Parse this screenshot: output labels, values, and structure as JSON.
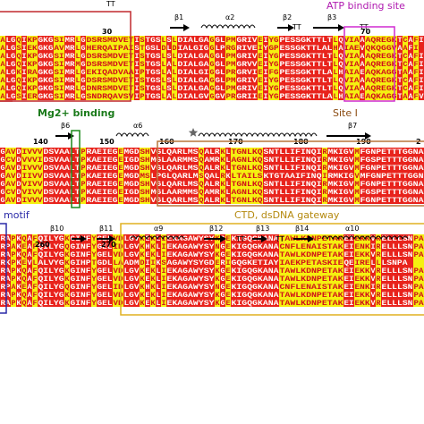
{
  "annotations": {
    "atp": "ATP binding site",
    "mg": "Mg2+ binding",
    "site1": "Site I",
    "motif": "motif",
    "ctd": "CTD, dsDNA gateway"
  },
  "blocks": [
    {
      "structure": [
        "TT",
        "β1",
        "α2",
        "β2",
        "TT",
        "β3",
        "TT"
      ],
      "ruler": [
        "30",
        "70"
      ],
      "conservation": "YRRYRYYRRRYYRRYRYYYYYYYYYRYRRRYRYRRRRRRYRRYYRRRRYRYYRRRRRRRRRRYRYYYRYYYYYYRYRYR",
      "rows": [
        "ALGQIKPGKGSIMRLGDSRSMDVETISTGSLSLDIALGAGGLPMGRIVEIYGPESSGKTTLTLQVIAAAQREGKTCAFI",
        "ALGSIEKGKGAVMRLGHERQAIPAISTGSLDLDIALGIGGLPRGRIVEIYGPESSGKTTLALHAIAEVQKQGGVAAFI",
        "ALGQIKPGKGSIMRLGDSRSMDVETISTGSLSLDIALGAGGLPMGRIVEIYGPESSGKTTLTLQVIAAAQREGKTCAFI",
        "ALGQIKPGKGSIMRMGDSRSMDVETISTGSLALDIALGAGGLPMGRVVEIYGPESSGKTTLTLQVIAAAQREGKTCAFI",
        "ALGKIRAGKGSIMRLGEKIQADVAAIPTGSLALDIALGIGGLPRGRVIEIFGPESSGKTTLALHAIAEAQKAGGTAAFI",
        "ALGQIKPGKGSIMRLGDSRSMDVETISTGSLSLDIALGAGGLPMGRIVEIYGPESSGKTTLTLQVIAAAQREGKTCAFI",
        "ALGQIKPGKGSIMRLGDNRSMDVETISTGSLSLDIALGAGGLPMGRIVEIYGPESSGKTTLTLQVIAAAQREGKTCAFI",
        "ALGSIERGKGSIMRLGSNDRQAVSVIPTGSLALDIALGVGGVPRGRIIEIYGPESSGKTTLALHAIAEAQKAGGTAAFV"
      ]
    },
    {
      "structure": [
        "β6",
        "α6",
        "β7"
      ],
      "ruler": [
        "140",
        "150",
        "160",
        "170",
        "180",
        "190",
        "2"
      ],
      "conservation": "RYYRYYYYRRRRRRRYRRRRRRYRRRYYRRRRRRRRRYRRRYRYYYYYYRRRRRRRRRRRYRRRRRYRRRRRRRRRRRR",
      "rows": [
        "GAVDIVVVDSVAALTPRAEIEGEMGDSHVGLQARLMSQALRKLTGNLKQSNTLLIFINQIRMKIGVMFGNPETTTGGNA",
        "GCVDVVVIDSVAALTPKAEIEGEIGDSHMGLAARMMSQAMRKLAGNLKQSNTLLIFINQIRMKIGVMFGSPETTTGGNA",
        "GAVDIVVVDSVAALTPRAEIEGEMGDSHVGLQARLMSQALRKLTGNLKQSNTLLIFINQIRMKIGVMFGNPETTTGGNA",
        "GAVDIIVVDSVAALTPKAEIEGEMGDMSLPGLQARLMSQALRKLTAILSKTGTAAIFINQIRMKIGVMFGNPETTTGGNA",
        "GAVDVIVVDSVAALTPRAEIEGEMGDSHVGLQARLMSQALRKLTGNLKQSNTLLIFINQIRMKIGVMFGNPETTTGGNA",
        "GCVDVIVVDSVAALTPKAEIEGEIGDSHMGLAARMMSQAMRKLAGNLKQSNTLLIFINQIRMKIGVMFGSPETTTGGNA",
        "GAVDIVVVDSVAALTPRAEIEGEMGDSHVGLQARLMSQALRKLTGNLKQSNTLLIFINQIRMKIGVMFGNPETTTGGNA"
      ]
    },
    {
      "structure": [
        "β10",
        "β11",
        "α9",
        "β12",
        "TT",
        "β13",
        "TT",
        "β14",
        "α10"
      ],
      "ruler": [
        "260",
        "270"
      ],
      "conservation": "RRYRYRYRRRRRYRRRRYRRRYYRRRYRYRYRRRRRRRRRYRYRRRRRRRRRYYYYYYYYYYYYRRYYYRYRRRRRRYY",
      "rows": [
        "RAPKQAFQILYGKGINFYGELVDLGVKEKLIEKAGAWYSYKGEKIGQGKANATAWLKDNPETAKEIEKKVRELLLSNPA",
        "RPAKEAFQILYGQGINFYGELIDLGVKHKLIEKAGAWYSYNGEKIGQGKANACNFLENAISTAKEIENKIRELLLSNPA",
        "RAPKQAFQILYGKGINFYGELVDLGVKEKLIEKAGAWYSYKGEKIGQGKANATAWLKDNPETAKEIEKKVRELLLSNPA",
        "RKPKEVLALVYGKGIHPTGDLLAADMDIIKSAGAWYSYGDERIGQGKETIAYIAEKPETASKIEQEIRELLLSNPA",
        "RAPKQAFQILYGKGINFYGELVDLGVKEKLIEKAGAWYSYKGEKIGQGKANATAWLKDNPETAKEIEKKVRELLLSNPA",
        "RAPKQAFQILYGKGINFYGELVDLGVKEKLIEKAGAWYSYKGEKIGQGKANATAWLKDNPETAKEIEKKVRELLLSNPA",
        "RPAKEAFQILYGQGINFYGELIDLGVKHKLIEKAGAWYSYNGEKIGQGKANACNFLENAISTAKEIENKIRELLLSNPA",
        "RAPKQAFQILYGKGINFYGELVDLGVKEKLIEKAGAWYSYKGEKIGQGKANATAWLKDNPETAKEIEKKVRELLLSNPA",
        "RAPKQAFQILYGKGINFYGELVDLGVKEKLIEKAGAWYSYKGEKIGQGKANATAWLKDNPETAKEIEKKVRELLLSNPA"
      ]
    }
  ]
}
